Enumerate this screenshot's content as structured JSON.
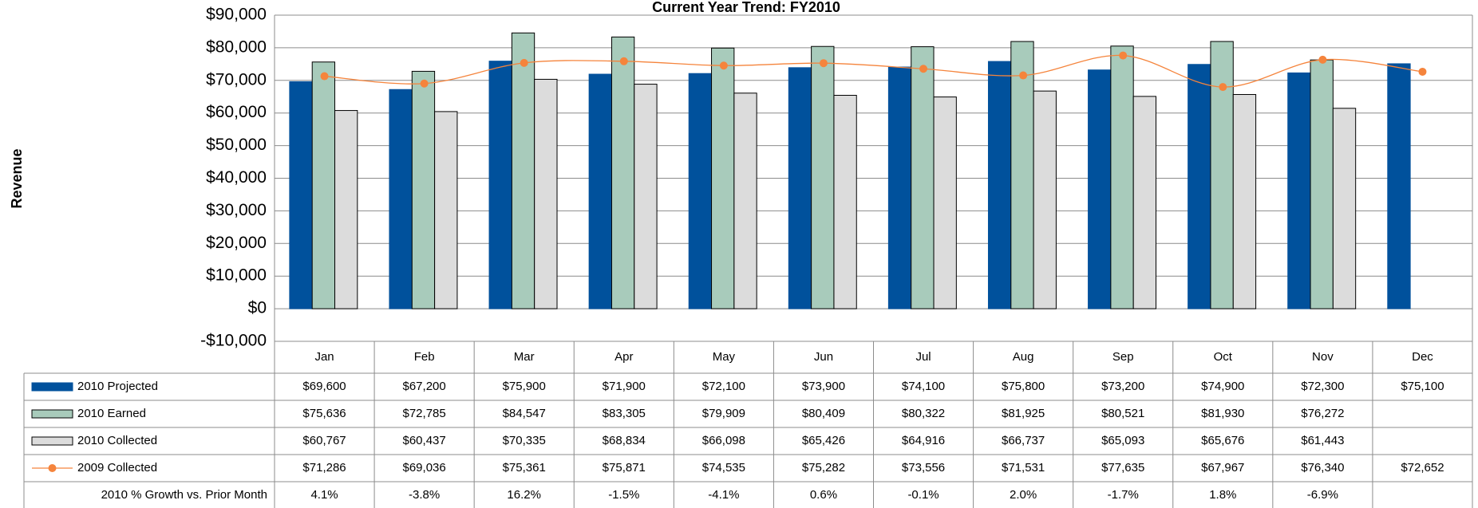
{
  "chart_data": {
    "type": "bar",
    "title": "Current Year Trend: FY2010",
    "y_label": "Revenue",
    "categories": [
      "Jan",
      "Feb",
      "Mar",
      "Apr",
      "May",
      "Jun",
      "Jul",
      "Aug",
      "Sep",
      "Oct",
      "Nov",
      "Dec"
    ],
    "ylim": [
      -10000,
      90000
    ],
    "yticks": [
      {
        "value": 90000,
        "label": "$90,000"
      },
      {
        "value": 80000,
        "label": "$80,000"
      },
      {
        "value": 70000,
        "label": "$70,000"
      },
      {
        "value": 60000,
        "label": "$60,000"
      },
      {
        "value": 50000,
        "label": "$50,000"
      },
      {
        "value": 40000,
        "label": "$40,000"
      },
      {
        "value": 30000,
        "label": "$30,000"
      },
      {
        "value": 20000,
        "label": "$20,000"
      },
      {
        "value": 10000,
        "label": "$10,000"
      },
      {
        "value": 0,
        "label": "$0"
      },
      {
        "value": -10000,
        "label": "-$10,000"
      }
    ],
    "grid": true,
    "series": [
      {
        "name": "2010 Projected",
        "type": "bar",
        "color": "#00519c",
        "values": [
          69600,
          67200,
          75900,
          71900,
          72100,
          73900,
          74100,
          75800,
          73200,
          74900,
          72300,
          75100
        ],
        "value_labels": [
          "$69,600",
          "$67,200",
          "$75,900",
          "$71,900",
          "$72,100",
          "$73,900",
          "$74,100",
          "$75,800",
          "$73,200",
          "$74,900",
          "$72,300",
          "$75,100"
        ]
      },
      {
        "name": "2010 Earned",
        "type": "bar",
        "color": "#a8cbbb",
        "values": [
          75636,
          72785,
          84547,
          83305,
          79909,
          80409,
          80322,
          81925,
          80521,
          81930,
          76272,
          null
        ],
        "value_labels": [
          "$75,636",
          "$72,785",
          "$84,547",
          "$83,305",
          "$79,909",
          "$80,409",
          "$80,322",
          "$81,925",
          "$80,521",
          "$81,930",
          "$76,272",
          null
        ]
      },
      {
        "name": "2010 Collected",
        "type": "bar",
        "color": "#dcdcdc",
        "values": [
          60767,
          60437,
          70335,
          68834,
          66098,
          65426,
          64916,
          66737,
          65093,
          65676,
          61443,
          null
        ],
        "value_labels": [
          "$60,767",
          "$60,437",
          "$70,335",
          "$68,834",
          "$66,098",
          "$65,426",
          "$64,916",
          "$66,737",
          "$65,093",
          "$65,676",
          "$61,443",
          null
        ]
      },
      {
        "name": "2009 Collected",
        "type": "line",
        "color": "#f5843c",
        "values": [
          71286,
          69036,
          75361,
          75871,
          74535,
          75282,
          73556,
          71531,
          77635,
          67967,
          76340,
          72652
        ],
        "value_labels": [
          "$71,286",
          "$69,036",
          "$75,361",
          "$75,871",
          "$74,535",
          "$75,282",
          "$73,556",
          "$71,531",
          "$77,635",
          "$67,967",
          "$76,340",
          "$72,652"
        ]
      }
    ],
    "table_rows": [
      {
        "name": "2010 % Growth vs. Prior Month",
        "values": [
          4.1,
          -3.8,
          16.2,
          -1.5,
          -4.1,
          0.6,
          -0.1,
          2.0,
          -1.7,
          1.8,
          -6.9,
          null
        ],
        "value_labels": [
          "4.1%",
          "-3.8%",
          "16.2%",
          "-1.5%",
          "-4.1%",
          "0.6%",
          "-0.1%",
          "2.0%",
          "-1.7%",
          "1.8%",
          "-6.9%",
          null
        ]
      }
    ]
  }
}
